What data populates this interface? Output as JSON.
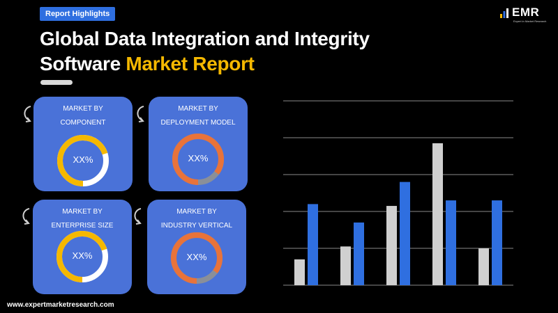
{
  "header": {
    "badge": "Report Highlights",
    "title_line1": "Global Data Integration and Integrity",
    "title_line2_plain": "Software",
    "title_line2_highlight": "Market Report"
  },
  "logo": {
    "text": "EMR",
    "tagline": "Expert in Market Research"
  },
  "cards": [
    {
      "label_line1": "MARKET BY",
      "label_line2": "COMPONENT",
      "value": "XX%",
      "ring_color": "#f5b800",
      "fill_fraction": 0.7
    },
    {
      "label_line1": "MARKET BY",
      "label_line2": "DEPLOYMENT MODEL",
      "value": "XX%",
      "ring_color": "#e8733a",
      "fill_fraction": 0.85
    },
    {
      "label_line1": "MARKET BY",
      "label_line2": "ENTERPRISE SIZE",
      "value": "XX%",
      "ring_color": "#f5b800",
      "fill_fraction": 0.7
    },
    {
      "label_line1": "MARKET BY",
      "label_line2": "INDUSTRY VERTICAL",
      "value": "XX%",
      "ring_color": "#e8733a",
      "fill_fraction": 0.85
    }
  ],
  "chart_data": {
    "type": "bar",
    "categories": [
      "",
      "",
      "",
      "",
      ""
    ],
    "series": [
      {
        "color": "#d0d0d0",
        "values": [
          0.7,
          1.05,
          2.15,
          3.85,
          1.0
        ]
      },
      {
        "color": "#2f6fe0",
        "values": [
          2.2,
          1.7,
          2.8,
          2.3,
          2.3
        ]
      }
    ],
    "ylim": [
      0,
      5
    ],
    "grid": true,
    "title": "",
    "xlabel": "",
    "ylabel": ""
  },
  "footer": {
    "url": "www.expertmarketresearch.com"
  },
  "colors": {
    "accent_blue": "#2f6fe0",
    "highlight_yellow": "#f5b800",
    "card_blue": "#4a72d8"
  }
}
